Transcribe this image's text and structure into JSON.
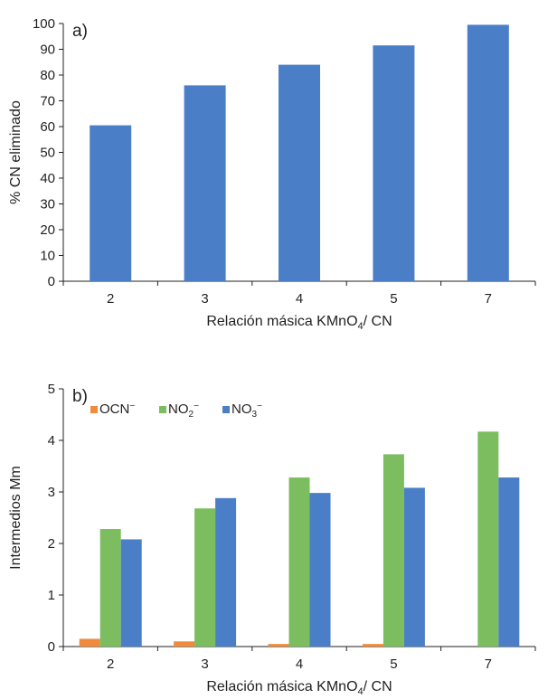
{
  "chart_data": [
    {
      "type": "bar",
      "panel_label": "a)",
      "categories": [
        "2",
        "3",
        "4",
        "5",
        "7"
      ],
      "series": [
        {
          "values": [
            60.5,
            76,
            84,
            91.5,
            99.5
          ],
          "color": "#4a7ec7"
        }
      ],
      "xlabel": {
        "pre": "Relación másica KMnO",
        "sub": "4",
        "post": "/ CN"
      },
      "ylabel": "% CN eliminado",
      "ylim": [
        0,
        100
      ],
      "yticks": [
        0,
        10,
        20,
        30,
        40,
        50,
        60,
        70,
        80,
        90,
        100
      ],
      "grid": false,
      "legend": null
    },
    {
      "type": "bar",
      "panel_label": "b)",
      "categories": [
        "2",
        "3",
        "4",
        "5",
        "7"
      ],
      "series": [
        {
          "name": {
            "base": "OCN",
            "sub": "",
            "sup": "−"
          },
          "values": [
            0.15,
            0.1,
            0.05,
            0.05,
            0
          ],
          "color": "#f08a3c"
        },
        {
          "name": {
            "base": "NO",
            "sub": "2",
            "sup": "−"
          },
          "values": [
            2.28,
            2.68,
            3.28,
            3.73,
            4.17
          ],
          "color": "#7bbd5f"
        },
        {
          "name": {
            "base": "NO",
            "sub": "3",
            "sup": "−"
          },
          "values": [
            2.08,
            2.88,
            2.98,
            3.08,
            3.28
          ],
          "color": "#4a7ec7"
        }
      ],
      "xlabel": {
        "pre": "Relación másica KMnO",
        "sub": "4",
        "post": "/ CN"
      },
      "ylabel": "Intermedios Mm",
      "ylim": [
        0,
        5
      ],
      "yticks": [
        0,
        1,
        2,
        3,
        4,
        5
      ],
      "grid": false,
      "legend": "top-left"
    }
  ]
}
